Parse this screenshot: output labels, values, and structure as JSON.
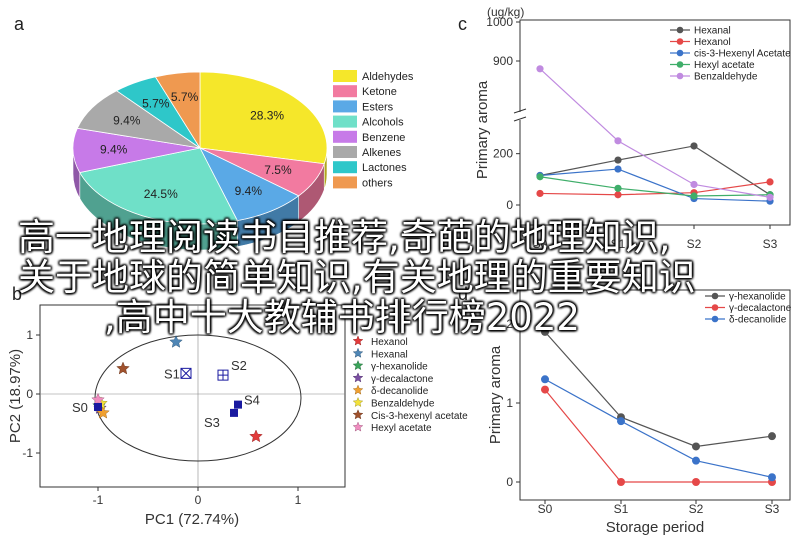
{
  "overlay_lines": [
    "高一地理阅读书目推荐,奇葩的地理知识,",
    "关于地球的简单知识,有关地理的重要知识",
    ",高中十大教辅书排行榜2022"
  ],
  "chart_data": [
    {
      "panel": "a",
      "type": "pie",
      "slices": [
        {
          "name": "Aldehydes",
          "value": 28.3,
          "label": "28.3%",
          "color": "#f5e72a"
        },
        {
          "name": "Ketone",
          "value": 7.5,
          "label": "7.5%",
          "color": "#f27aa0"
        },
        {
          "name": "Esters",
          "value": 9.4,
          "label": "9.4%",
          "color": "#5aa9e6"
        },
        {
          "name": "Alcohols",
          "value": 24.5,
          "label": "24.5%",
          "color": "#6fe0c8"
        },
        {
          "name": "Benzene",
          "value": 9.4,
          "label": "9.4%",
          "color": "#c77ae8"
        },
        {
          "name": "Alkenes",
          "value": 9.4,
          "label": "9.4%",
          "color": "#a9a9a9"
        },
        {
          "name": "Lactones",
          "value": 5.7,
          "label": "5.7%",
          "color": "#2ec7c9"
        },
        {
          "name": "others",
          "value": 5.7,
          "label": "5.7%",
          "color": "#ef9950"
        }
      ],
      "legend": [
        "Aldehydes",
        "Ketone",
        "Esters",
        "Alcohols",
        "Benzene",
        "Alkenes",
        "Lactones",
        "others"
      ]
    },
    {
      "panel": "b",
      "type": "scatter",
      "xlabel": "PC1 (72.74%)",
      "ylabel": "PC2 (18.97%)",
      "xlim": [
        -1.3,
        1.3
      ],
      "ylim": [
        -1.3,
        1.3
      ],
      "xticks": [
        "-1",
        "0",
        "1"
      ],
      "yticks": [
        "1",
        "0",
        "-1"
      ],
      "samples": [
        {
          "name": "S0",
          "x": -1.0,
          "y": -0.22,
          "marker": "square",
          "color": "#1a1aa0"
        },
        {
          "name": "S1",
          "x": -0.12,
          "y": 0.35,
          "marker": "square-x",
          "color": "#1a1aa0"
        },
        {
          "name": "S2",
          "x": 0.25,
          "y": 0.32,
          "marker": "square-plus",
          "color": "#1a1aa0"
        },
        {
          "name": "S3",
          "x": 0.36,
          "y": -0.32,
          "marker": "square",
          "color": "#1a1aa0"
        },
        {
          "name": "S4",
          "x": 0.4,
          "y": -0.18,
          "marker": "square",
          "color": "#1a1aa0"
        }
      ],
      "compounds": [
        {
          "name": "Hexanol",
          "x": 0.58,
          "y": -0.72,
          "color": "#e23b3b"
        },
        {
          "name": "Hexanal",
          "x": -0.22,
          "y": 0.88,
          "color": "#4f86b5"
        },
        {
          "name": "γ-hexanolide",
          "x": -0.99,
          "y": -0.2,
          "color": "#3aa35a"
        },
        {
          "name": "γ-decalactone",
          "x": -0.98,
          "y": -0.24,
          "color": "#7b4fa3"
        },
        {
          "name": "δ-decanolide",
          "x": -0.95,
          "y": -0.32,
          "color": "#f0a030"
        },
        {
          "name": "Benzaldehyde",
          "x": -0.97,
          "y": -0.16,
          "color": "#f2e13a"
        },
        {
          "name": "Cis-3-hexenyl acetate",
          "x": -0.75,
          "y": 0.43,
          "color": "#a0522d"
        },
        {
          "name": "Hexyl acetate",
          "x": -1.0,
          "y": -0.1,
          "color": "#f08cc0"
        }
      ]
    },
    {
      "panel": "c",
      "type": "line",
      "unit": "(ug/kg)",
      "xlabel": "S0  S1  S2  S3",
      "ylabel": "Primary aroma",
      "categories": [
        "S0",
        "S1",
        "S2",
        "S3"
      ],
      "yticks": [
        "1000",
        "900",
        "200",
        "0"
      ],
      "axis_break": [
        300,
        800
      ],
      "series": [
        {
          "name": "Hexanal",
          "color": "#555555",
          "values": [
            115,
            175,
            230,
            40
          ]
        },
        {
          "name": "Hexanol",
          "color": "#e54848",
          "values": [
            45,
            40,
            48,
            90
          ]
        },
        {
          "name": "cis-3-Hexenyl Acetate",
          "color": "#3b73c9",
          "values": [
            115,
            140,
            25,
            15
          ]
        },
        {
          "name": "Hexyl acetate",
          "color": "#3fae6a",
          "values": [
            110,
            65,
            35,
            40
          ]
        },
        {
          "name": "Benzaldehyde",
          "color": "#c08be0",
          "values": [
            880,
            250,
            80,
            30
          ]
        }
      ],
      "legend": [
        "Hexanal",
        "Hexanol",
        "cis-3-Hexenyl Acetate",
        "Hexyl acetate",
        "Benzaldehyde"
      ]
    },
    {
      "panel": "d",
      "type": "line",
      "xlabel": "Storage period",
      "ylabel": "Primary aroma",
      "categories": [
        "S0",
        "S1",
        "S2",
        "S3"
      ],
      "yticks": [
        "2",
        "1",
        "0"
      ],
      "ylim": [
        0,
        2.2
      ],
      "series": [
        {
          "name": "γ-hexanolide",
          "color": "#555555",
          "values": [
            1.9,
            0.82,
            0.45,
            0.58
          ]
        },
        {
          "name": "γ-decalactone",
          "color": "#e54848",
          "values": [
            1.17,
            0.0,
            0.0,
            0.0
          ]
        },
        {
          "name": "δ-decanolide",
          "color": "#3b73c9",
          "values": [
            1.3,
            0.77,
            0.27,
            0.06
          ]
        }
      ],
      "legend": [
        "γ-hexanolide",
        "γ-decalactone",
        "δ-decanolide"
      ]
    }
  ]
}
